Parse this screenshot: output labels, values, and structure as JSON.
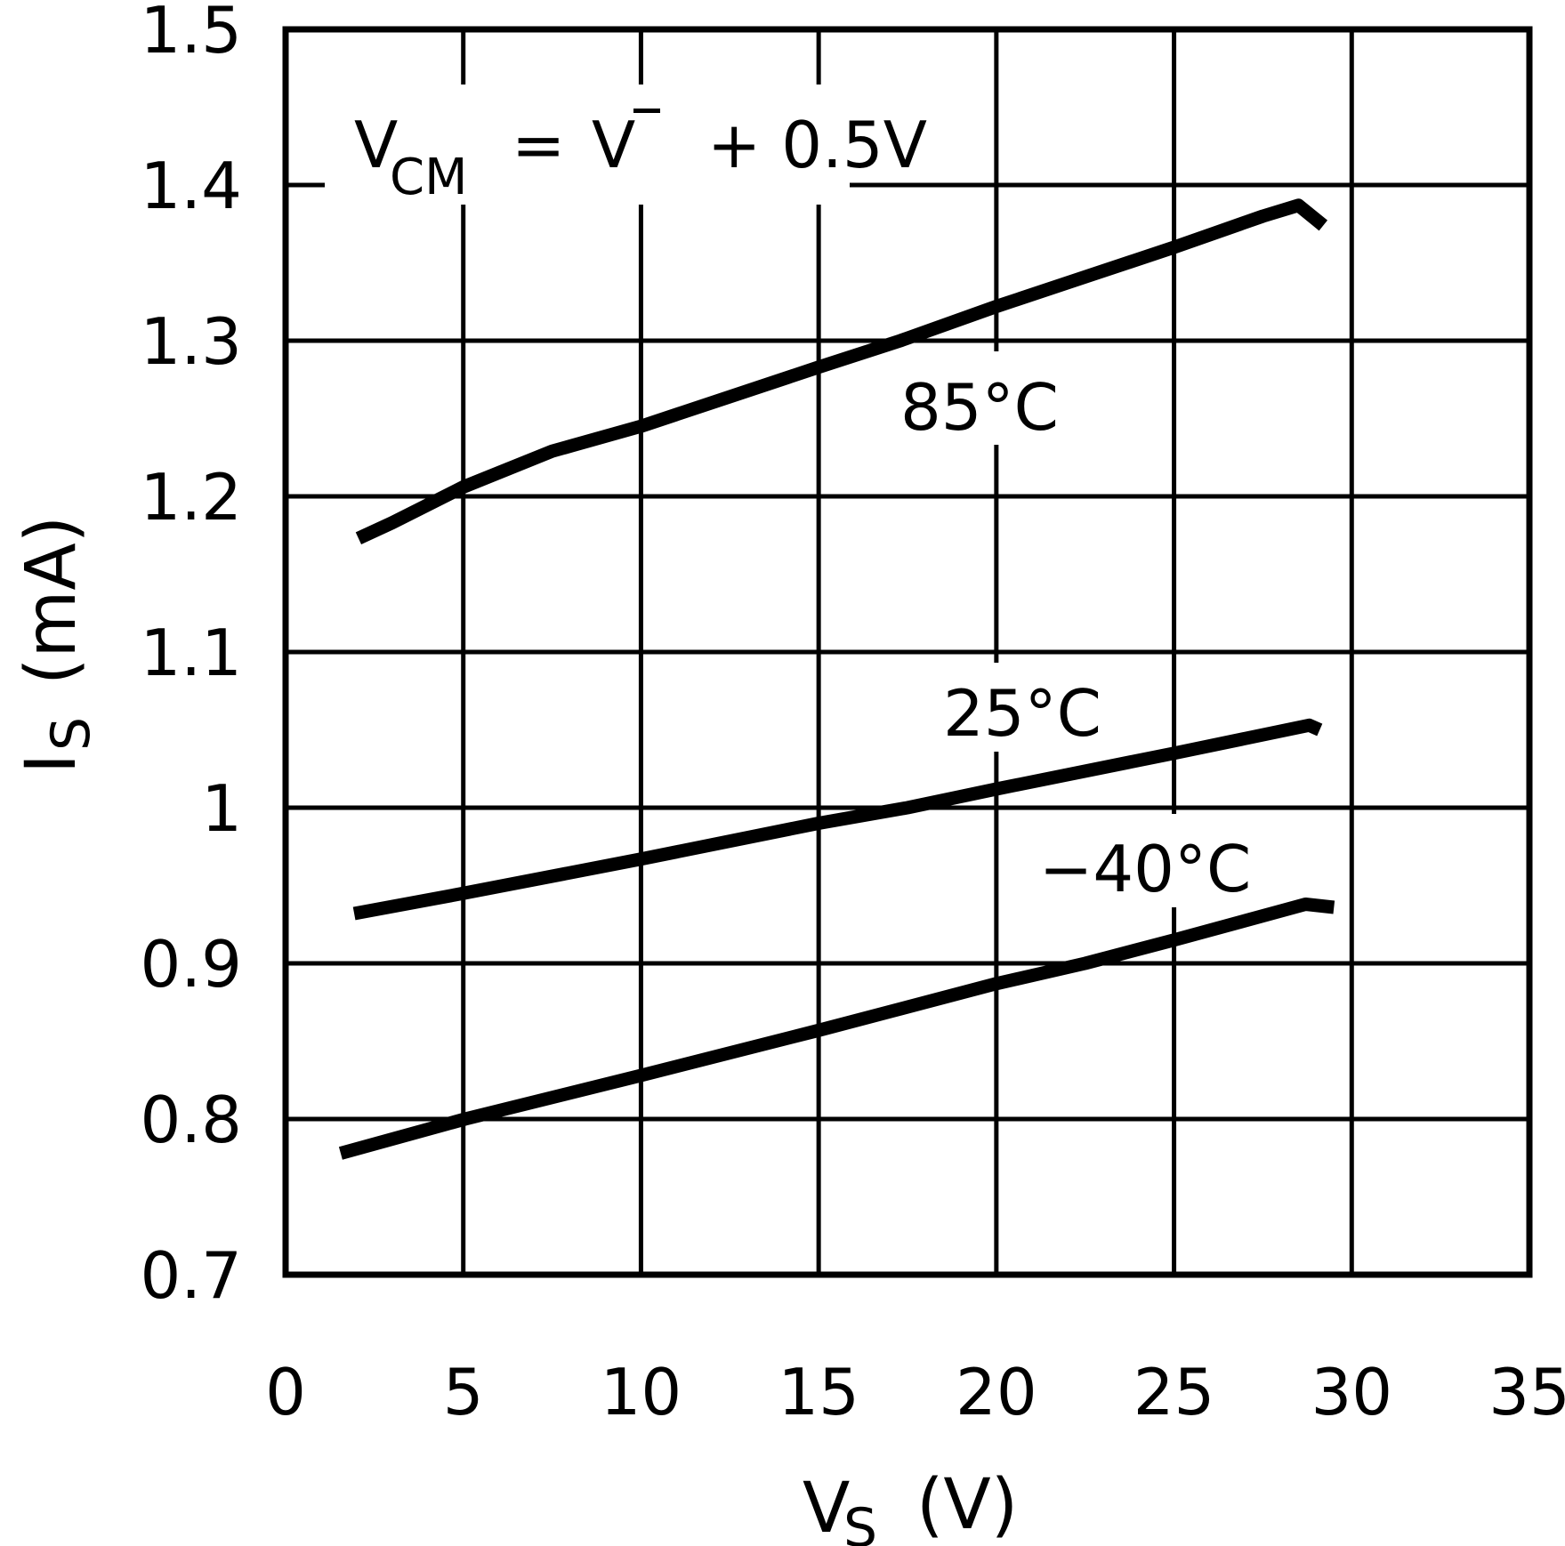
{
  "chart_data": {
    "type": "line",
    "title": "",
    "xlabel": "V_S (V)",
    "ylabel": "I_S (mA)",
    "xlabel_parts": {
      "main": "V",
      "sub": "S",
      "unit": "(V)"
    },
    "ylabel_parts": {
      "main": "I",
      "sub": "S",
      "unit": "(mA)"
    },
    "xlim": [
      0,
      35
    ],
    "ylim": [
      0.7,
      1.5
    ],
    "x_ticks": [
      0,
      5,
      10,
      15,
      20,
      25,
      30,
      35
    ],
    "x_tick_labels": [
      "0",
      "5",
      "10",
      "15",
      "20",
      "25",
      "30",
      "35"
    ],
    "y_ticks": [
      0.7,
      0.8,
      0.9,
      1.0,
      1.1,
      1.2,
      1.3,
      1.4,
      1.5
    ],
    "y_tick_labels": [
      "0.7",
      "0.8",
      "0.9",
      "1",
      "1.1",
      "1.2",
      "1.3",
      "1.4",
      "1.5"
    ],
    "grid": true,
    "legend": "inline labels",
    "annotation": {
      "text": "V_CM = V⁻ + 0.5V",
      "parts": {
        "v": "V",
        "sub": "CM",
        "eq": "=",
        "v2": "V",
        "sup": "−",
        "rest": "+ 0.5V"
      }
    },
    "series": [
      {
        "name": "85°C",
        "label": "85°C",
        "x": [
          2.05,
          3.0,
          5.0,
          7.5,
          10.0,
          12.5,
          15.0,
          17.3,
          20.0,
          22.5,
          25.0,
          27.5,
          28.5,
          29.2
        ],
        "y": [
          1.173,
          1.183,
          1.206,
          1.229,
          1.245,
          1.264,
          1.283,
          1.3,
          1.322,
          1.341,
          1.36,
          1.38,
          1.387,
          1.374
        ]
      },
      {
        "name": "25°C",
        "label": "25°C",
        "x": [
          1.93,
          5.0,
          10.0,
          15.0,
          17.5,
          20.0,
          25.0,
          28.8,
          29.1
        ],
        "y": [
          0.932,
          0.945,
          0.967,
          0.99,
          1.0,
          1.012,
          1.035,
          1.053,
          1.05
        ]
      },
      {
        "name": "-40°C",
        "label": "−40°C",
        "x": [
          1.55,
          5.05,
          10.0,
          15.0,
          20.0,
          22.5,
          25.0,
          28.7,
          29.5
        ],
        "y": [
          0.778,
          0.8,
          0.828,
          0.857,
          0.887,
          0.9,
          0.915,
          0.938,
          0.936
        ]
      }
    ],
    "colors": {
      "line": "#000000",
      "grid": "#000000",
      "background": "#ffffff"
    }
  }
}
